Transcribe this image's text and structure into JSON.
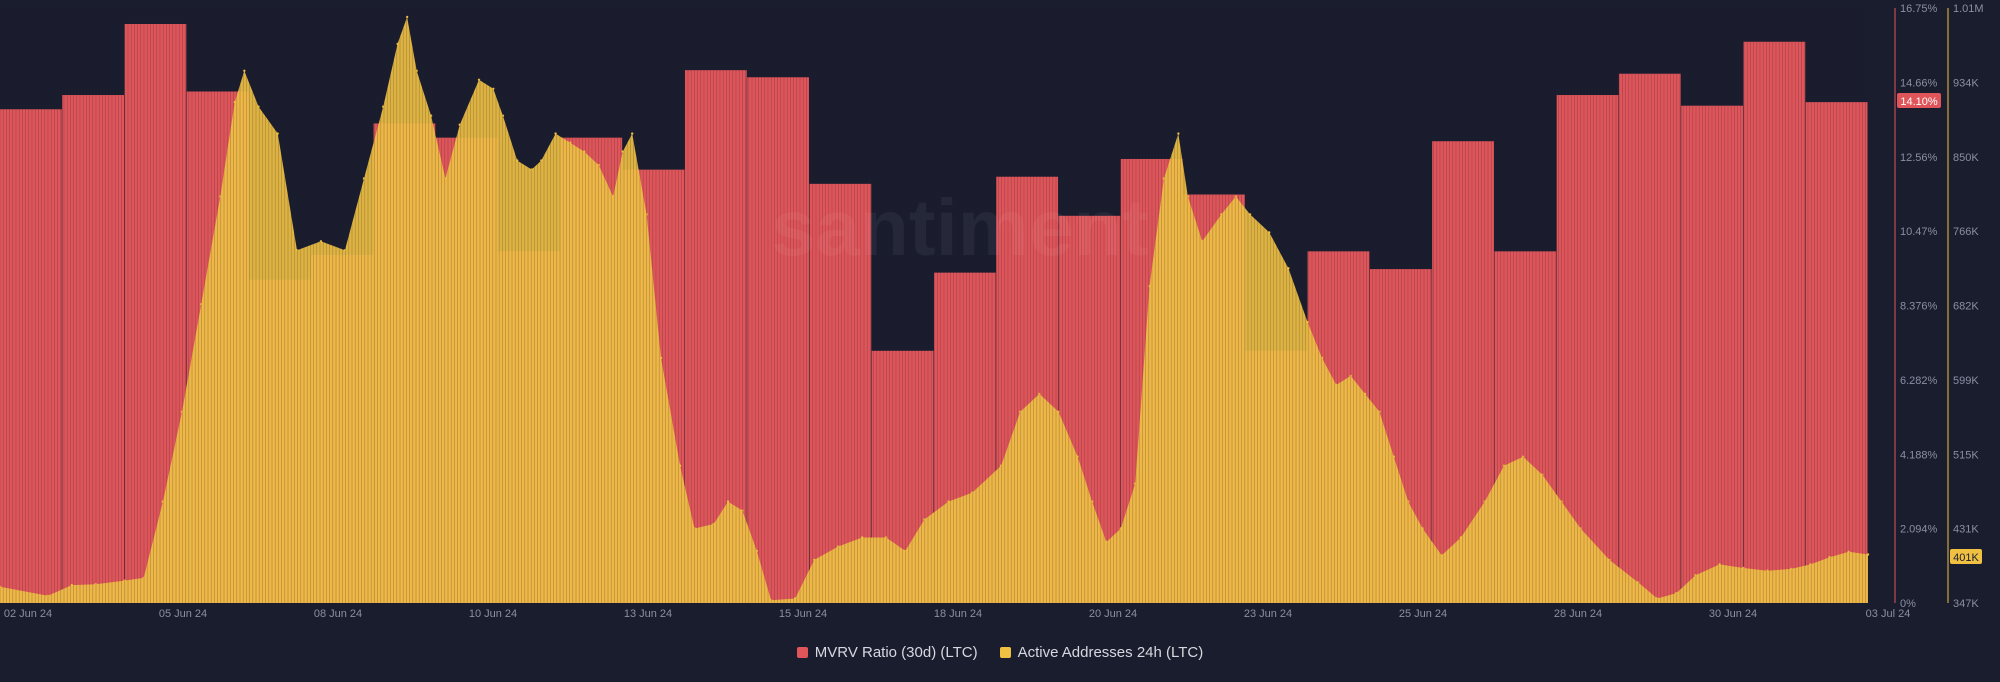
{
  "watermark": "santiment",
  "colors": {
    "background": "#1a1d2e",
    "mvrv": "#e05559",
    "active_addresses": "#f0c043",
    "tick_text": "#8a8fa3"
  },
  "legend": {
    "mvrv_label": "MVRV Ratio (30d) (LTC)",
    "active_label": "Active Addresses 24h (LTC)"
  },
  "badges": {
    "mvrv_current": "14.10%",
    "active_current": "401K"
  },
  "chart_data": {
    "type": "bar",
    "title": "",
    "x_labels": [
      "02 Jun 24",
      "05 Jun 24",
      "08 Jun 24",
      "10 Jun 24",
      "13 Jun 24",
      "15 Jun 24",
      "18 Jun 24",
      "20 Jun 24",
      "23 Jun 24",
      "25 Jun 24",
      "28 Jun 24",
      "30 Jun 24",
      "03 Jul 24"
    ],
    "y_left_ticks": [
      "0%",
      "2.094%",
      "4.188%",
      "6.282%",
      "8.376%",
      "10.47%",
      "12.56%",
      "14.66%",
      "16.75%"
    ],
    "y_right_ticks": [
      "347K",
      "431K",
      "515K",
      "599K",
      "682K",
      "766K",
      "850K",
      "934K",
      "1.01M"
    ],
    "ylim_left": [
      0,
      16.75
    ],
    "ylim_right": [
      347000,
      1010000
    ],
    "grid": false,
    "legend_position": "bottom-center",
    "series": [
      {
        "name": "MVRV Ratio (30d) (LTC)",
        "axis": "left",
        "unit": "%",
        "values": [
          13.9,
          14.3,
          16.3,
          14.4,
          9.1,
          9.8,
          13.5,
          13.1,
          9.9,
          13.1,
          12.2,
          15.0,
          14.8,
          11.8,
          7.1,
          9.3,
          12.0,
          10.9,
          12.5,
          11.5,
          7.1,
          9.9,
          9.4,
          13.0,
          9.9,
          14.3,
          14.9,
          14.0,
          15.8,
          14.1
        ]
      },
      {
        "name": "Active Addresses 24h (LTC)",
        "axis": "right",
        "points": [
          [
            0.0,
            365000
          ],
          [
            1.0,
            355000
          ],
          [
            1.5,
            367000
          ],
          [
            2.0,
            368000
          ],
          [
            2.6,
            372000
          ],
          [
            3.0,
            375000
          ],
          [
            3.4,
            460000
          ],
          [
            3.8,
            560000
          ],
          [
            4.2,
            680000
          ],
          [
            4.6,
            800000
          ],
          [
            4.9,
            905000
          ],
          [
            5.1,
            940000
          ],
          [
            5.4,
            900000
          ],
          [
            5.8,
            870000
          ],
          [
            6.2,
            740000
          ],
          [
            6.7,
            750000
          ],
          [
            7.2,
            740000
          ],
          [
            7.6,
            820000
          ],
          [
            8.0,
            900000
          ],
          [
            8.3,
            970000
          ],
          [
            8.5,
            1000000
          ],
          [
            8.7,
            940000
          ],
          [
            9.0,
            890000
          ],
          [
            9.3,
            820000
          ],
          [
            9.6,
            880000
          ],
          [
            10.0,
            930000
          ],
          [
            10.3,
            920000
          ],
          [
            10.5,
            890000
          ],
          [
            10.8,
            840000
          ],
          [
            11.1,
            830000
          ],
          [
            11.3,
            840000
          ],
          [
            11.6,
            870000
          ],
          [
            11.9,
            860000
          ],
          [
            12.2,
            850000
          ],
          [
            12.5,
            835000
          ],
          [
            12.8,
            800000
          ],
          [
            13.0,
            850000
          ],
          [
            13.2,
            870000
          ],
          [
            13.5,
            780000
          ],
          [
            13.8,
            620000
          ],
          [
            14.2,
            500000
          ],
          [
            14.5,
            430000
          ],
          [
            14.9,
            435000
          ],
          [
            15.2,
            460000
          ],
          [
            15.5,
            450000
          ],
          [
            15.8,
            405000
          ],
          [
            16.1,
            350000
          ],
          [
            16.6,
            352000
          ],
          [
            17.0,
            395000
          ],
          [
            17.5,
            410000
          ],
          [
            18.0,
            420000
          ],
          [
            18.5,
            420000
          ],
          [
            18.9,
            405000
          ],
          [
            19.3,
            440000
          ],
          [
            19.8,
            460000
          ],
          [
            20.3,
            470000
          ],
          [
            20.9,
            500000
          ],
          [
            21.3,
            560000
          ],
          [
            21.7,
            580000
          ],
          [
            22.1,
            560000
          ],
          [
            22.5,
            510000
          ],
          [
            22.8,
            460000
          ],
          [
            23.1,
            415000
          ],
          [
            23.4,
            430000
          ],
          [
            23.7,
            480000
          ],
          [
            24.0,
            700000
          ],
          [
            24.3,
            820000
          ],
          [
            24.6,
            870000
          ],
          [
            24.8,
            800000
          ],
          [
            25.1,
            750000
          ],
          [
            25.5,
            780000
          ],
          [
            25.8,
            800000
          ],
          [
            26.1,
            780000
          ],
          [
            26.5,
            760000
          ],
          [
            26.9,
            720000
          ],
          [
            27.3,
            660000
          ],
          [
            27.6,
            620000
          ],
          [
            27.9,
            590000
          ],
          [
            28.2,
            600000
          ],
          [
            28.5,
            580000
          ],
          [
            28.8,
            560000
          ],
          [
            29.1,
            510000
          ],
          [
            29.4,
            460000
          ],
          [
            29.7,
            430000
          ],
          [
            30.1,
            400000
          ],
          [
            30.5,
            420000
          ],
          [
            31.0,
            460000
          ],
          [
            31.4,
            500000
          ],
          [
            31.8,
            510000
          ],
          [
            32.2,
            490000
          ],
          [
            32.6,
            460000
          ],
          [
            33.0,
            430000
          ],
          [
            33.6,
            395000
          ],
          [
            34.2,
            370000
          ],
          [
            34.6,
            352000
          ],
          [
            35.0,
            358000
          ],
          [
            35.4,
            378000
          ],
          [
            35.9,
            390000
          ],
          [
            36.4,
            386000
          ],
          [
            36.9,
            383000
          ],
          [
            37.4,
            385000
          ],
          [
            37.8,
            390000
          ],
          [
            38.2,
            398000
          ],
          [
            38.6,
            404000
          ],
          [
            39.0,
            401000
          ]
        ]
      }
    ]
  }
}
